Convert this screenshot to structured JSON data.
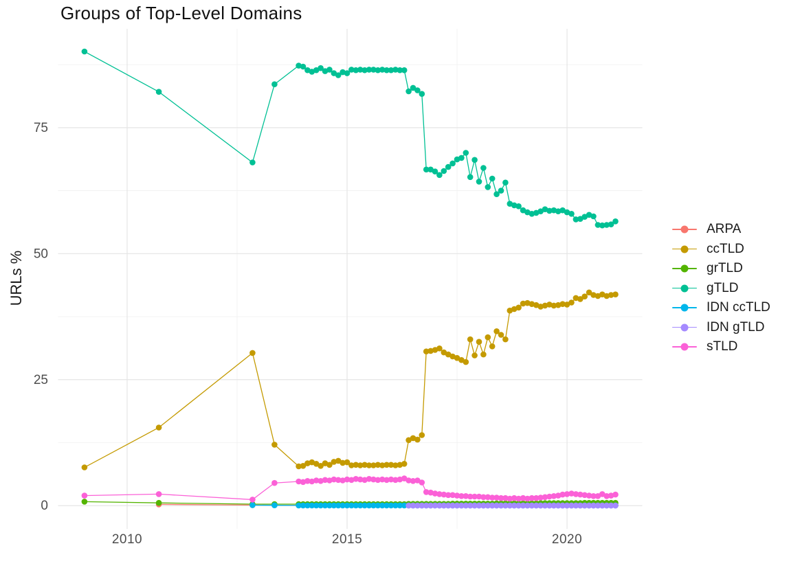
{
  "title": "Groups of Top-Level Domains",
  "y_axis_title": "URLs %",
  "colors": {
    "background": "#FFFFFF",
    "grid_major": "#E5E5E5",
    "grid_minor": "#F0F0F0",
    "tick_label_text": "#4D4D4D",
    "title_text": "#111111",
    "axis_title_text": "#1A1A1A",
    "legend_text": "#1A1A1A"
  },
  "legend_position": "right",
  "chart_data": {
    "type": "line",
    "title": "Groups of Top-Level Domains",
    "xlabel": "",
    "ylabel": "URLs %",
    "grid": true,
    "xlim": [
      2008.43,
      2021.71
    ],
    "ylim": [
      -4.6,
      94.6
    ],
    "x_major_ticks": [
      2010,
      2015,
      2020
    ],
    "x_tick_labels": [
      "2010",
      "2015",
      "2020"
    ],
    "x_minor_ticks": [
      2012.5,
      2017.5
    ],
    "y_major_ticks": [
      0,
      25,
      50,
      75
    ],
    "y_tick_labels": [
      "0",
      "25",
      "50",
      "75"
    ],
    "y_minor_ticks": [
      12.5,
      37.5,
      62.5,
      87.5
    ],
    "series": [
      {
        "name": "ARPA",
        "color": "#F8766D",
        "segments": [
          {
            "points": [
              [
                2010.72,
                0.25
              ],
              [
                2012.85,
                0.12
              ],
              [
                2013.35,
                0.1
              ]
            ]
          },
          {
            "x0": 2013.9,
            "dx": 0.1,
            "n": 73,
            "const": 0.07
          }
        ]
      },
      {
        "name": "ccTLD",
        "color": "#C49A00",
        "segments": [
          {
            "points": [
              [
                2009.03,
                7.6
              ],
              [
                2010.72,
                15.5
              ],
              [
                2012.85,
                30.3
              ],
              [
                2013.35,
                12.1
              ]
            ]
          },
          {
            "x0": 2013.9,
            "dx": 0.1,
            "values": [
              7.8,
              7.9,
              8.4,
              8.6,
              8.3,
              7.9,
              8.4,
              8.1,
              8.7,
              8.9,
              8.5,
              8.6,
              8.0,
              8.1,
              8.0,
              8.1,
              8.0,
              8.0,
              8.1,
              8.0,
              8.1,
              8.1,
              8.0,
              8.1,
              8.3,
              13.0,
              13.4,
              13.1,
              14.0,
              30.6,
              30.7,
              30.9,
              31.2,
              30.4,
              30.0,
              29.6,
              29.3,
              28.9,
              28.5,
              33.0,
              29.8,
              32.5,
              30.0,
              33.4,
              31.6,
              34.6,
              33.9,
              33.0,
              38.7,
              39.0,
              39.3,
              40.1,
              40.2,
              40.0,
              39.8,
              39.5,
              39.7,
              39.9,
              39.7,
              39.8,
              40.0,
              39.9,
              40.3,
              41.2,
              41.0,
              41.5,
              42.3,
              41.8,
              41.6,
              41.9,
              41.6,
              41.8,
              41.9
            ]
          }
        ]
      },
      {
        "name": "grTLD",
        "color": "#53B400",
        "segments": [
          {
            "points": [
              [
                2009.03,
                0.8
              ],
              [
                2010.72,
                0.55
              ],
              [
                2012.85,
                0.3
              ],
              [
                2013.35,
                0.3
              ]
            ]
          },
          {
            "x0": 2013.9,
            "dx": 0.1,
            "values": [
              0.3,
              0.3,
              0.3,
              0.3,
              0.3,
              0.3,
              0.3,
              0.3,
              0.3,
              0.3,
              0.3,
              0.3,
              0.3,
              0.3,
              0.3,
              0.3,
              0.3,
              0.3,
              0.3,
              0.3,
              0.3,
              0.3,
              0.3,
              0.3,
              0.3,
              0.35,
              0.35,
              0.35,
              0.35,
              0.35,
              0.35,
              0.35,
              0.35,
              0.35,
              0.35,
              0.4,
              0.4,
              0.4,
              0.4,
              0.4,
              0.4,
              0.4,
              0.4,
              0.4,
              0.4,
              0.45,
              0.45,
              0.45,
              0.45,
              0.45,
              0.45,
              0.45,
              0.45,
              0.45,
              0.45,
              0.5,
              0.5,
              0.5,
              0.5,
              0.5,
              0.5,
              0.5,
              0.5,
              0.5,
              0.5,
              0.55,
              0.55,
              0.55,
              0.55,
              0.55,
              0.55,
              0.55,
              0.55
            ]
          }
        ]
      },
      {
        "name": "gTLD",
        "color": "#00C094",
        "segments": [
          {
            "points": [
              [
                2009.03,
                90.1
              ],
              [
                2010.72,
                82.1
              ],
              [
                2012.85,
                68.1
              ],
              [
                2013.35,
                83.6
              ]
            ]
          },
          {
            "x0": 2013.9,
            "dx": 0.1,
            "values": [
              87.3,
              87.1,
              86.4,
              86.1,
              86.4,
              86.8,
              86.2,
              86.5,
              85.8,
              85.4,
              86.0,
              85.8,
              86.5,
              86.4,
              86.5,
              86.4,
              86.5,
              86.5,
              86.4,
              86.5,
              86.4,
              86.4,
              86.5,
              86.4,
              86.4,
              82.2,
              82.9,
              82.4,
              81.7,
              66.7,
              66.7,
              66.3,
              65.6,
              66.4,
              67.2,
              67.9,
              68.7,
              69.0,
              70.0,
              65.2,
              68.6,
              64.3,
              67.0,
              63.2,
              64.9,
              61.8,
              62.5,
              64.1,
              59.9,
              59.6,
              59.4,
              58.6,
              58.2,
              57.9,
              58.1,
              58.4,
              58.8,
              58.5,
              58.6,
              58.4,
              58.6,
              58.2,
              57.9,
              56.8,
              56.9,
              57.3,
              57.7,
              57.4,
              55.7,
              55.6,
              55.7,
              55.8,
              56.4
            ]
          }
        ]
      },
      {
        "name": "IDN ccTLD",
        "color": "#00B6EB",
        "segments": [
          {
            "points": [
              [
                2012.85,
                0.1
              ],
              [
                2013.35,
                0.08
              ]
            ]
          },
          {
            "x0": 2013.9,
            "dx": 0.1,
            "n": 73,
            "const": 0.05
          }
        ]
      },
      {
        "name": "IDN gTLD",
        "color": "#A58AFF",
        "segments": [
          {
            "x0": 2016.4,
            "dx": 0.1,
            "n": 48,
            "const": 0.02
          }
        ]
      },
      {
        "name": "sTLD",
        "color": "#FB61D7",
        "segments": [
          {
            "points": [
              [
                2009.03,
                2.0
              ],
              [
                2010.72,
                2.3
              ],
              [
                2012.85,
                1.2
              ],
              [
                2013.35,
                4.5
              ]
            ]
          },
          {
            "x0": 2013.9,
            "dx": 0.1,
            "values": [
              4.8,
              4.7,
              4.9,
              4.8,
              5.0,
              4.9,
              5.1,
              5.0,
              5.2,
              5.1,
              5.0,
              5.2,
              5.1,
              5.3,
              5.2,
              5.1,
              5.3,
              5.2,
              5.1,
              5.2,
              5.1,
              5.2,
              5.1,
              5.2,
              5.4,
              5.0,
              4.9,
              5.0,
              4.6,
              2.7,
              2.6,
              2.4,
              2.3,
              2.2,
              2.1,
              2.1,
              2.0,
              1.9,
              1.9,
              1.8,
              1.8,
              1.8,
              1.7,
              1.7,
              1.6,
              1.6,
              1.5,
              1.5,
              1.4,
              1.5,
              1.4,
              1.5,
              1.4,
              1.5,
              1.5,
              1.6,
              1.7,
              1.8,
              1.9,
              2.0,
              2.2,
              2.3,
              2.4,
              2.3,
              2.2,
              2.1,
              2.0,
              1.9,
              1.9,
              2.3,
              1.9,
              2.0,
              2.2
            ]
          }
        ]
      }
    ]
  }
}
